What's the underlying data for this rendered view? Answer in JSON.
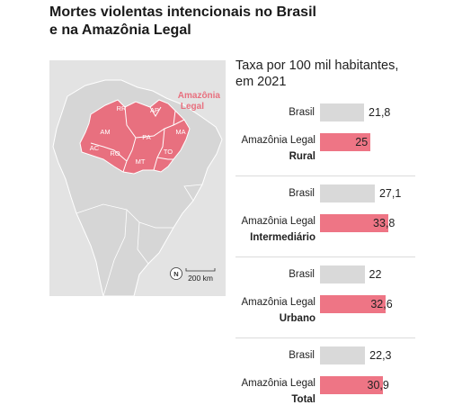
{
  "title_line1": "Mortes violentas intencionais no Brasil",
  "title_line2": "e na Amazônia Legal",
  "map": {
    "region_label_line1": "Amazônia",
    "region_label_line2": "Legal",
    "states": [
      "RR",
      "AP",
      "AM",
      "PA",
      "MA",
      "AC",
      "RO",
      "TO",
      "MT"
    ],
    "scale_label": "200 km",
    "north_label": "N",
    "colors": {
      "land": "#d6d6d6",
      "sea": "#e3e3e3",
      "amazon": "#e8707f",
      "border": "#ffffff",
      "label": "#e8707f"
    }
  },
  "chart_data": {
    "type": "bar",
    "subtitle_line1": "Taxa por 100 mil habitantes,",
    "subtitle_line2": "em 2021",
    "series_names": [
      "Brasil",
      "Amazônia Legal"
    ],
    "colors": {
      "Brasil": "#d9d9d9",
      "Amazônia Legal": "#ee7585"
    },
    "groups": [
      {
        "name": "Rural",
        "brasil": 21.8,
        "brasil_label": "21,8",
        "amazonia": 25,
        "amazonia_label": "25"
      },
      {
        "name": "Intermediário",
        "brasil": 27.1,
        "brasil_label": "27,1",
        "amazonia": 33.8,
        "amazonia_label": "33,8"
      },
      {
        "name": "Urbano",
        "brasil": 22,
        "brasil_label": "22",
        "amazonia": 32.6,
        "amazonia_label": "32,6"
      },
      {
        "name": "Total",
        "brasil": 22.3,
        "brasil_label": "22,3",
        "amazonia": 30.9,
        "amazonia_label": "30,9"
      }
    ]
  }
}
